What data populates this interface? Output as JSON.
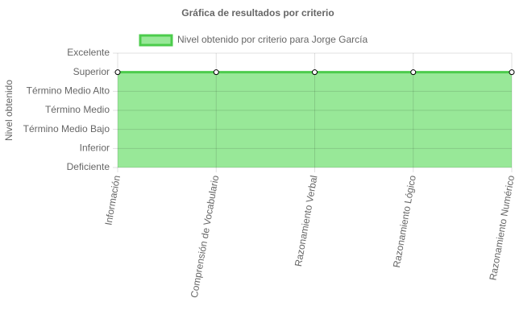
{
  "chart_data": {
    "type": "line",
    "title": "Gráfica de resultados por criterio",
    "y_label": "Nivel obtenido",
    "categories": [
      "Información",
      "Comprensión de Vocabulario",
      "Razonamiento Verbal",
      "Razonamiento Lógico",
      "Razonamiento Numérico"
    ],
    "series": [
      {
        "name": "Nivel obtenido por criterio para Jorge García",
        "color": "#4ccc4c",
        "fill_color": "#98e898",
        "values": [
          5,
          5,
          5,
          5,
          5
        ]
      }
    ],
    "ylim": [
      0,
      6
    ],
    "yticks": [
      {
        "value": 0,
        "label": "Deficiente"
      },
      {
        "value": 1,
        "label": "Inferior"
      },
      {
        "value": 2,
        "label": "Término Medio Bajo"
      },
      {
        "value": 3,
        "label": "Término Medio"
      },
      {
        "value": 4,
        "label": "Término Medio Alto"
      },
      {
        "value": 5,
        "label": "Superior"
      },
      {
        "value": 6,
        "label": "Excelente"
      }
    ],
    "fill": true,
    "grid": true,
    "legend": "top"
  }
}
